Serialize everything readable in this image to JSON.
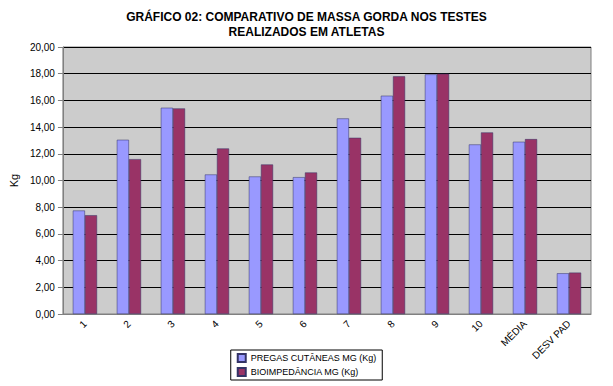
{
  "chart_data": {
    "type": "bar",
    "title": "GRÁFICO 02: COMPARATIVO DE MASSA GORDA NOS TESTES\nREALIZADOS EM ATLETAS",
    "y_label": "Kg",
    "categories": [
      "1",
      "2",
      "3",
      "4",
      "5",
      "6",
      "7",
      "8",
      "9",
      "10",
      "MÉDIA",
      "DESV PAD"
    ],
    "series": [
      {
        "name": "PREGAS CUTÂNEAS MG (Kg)",
        "color": "#9999ff",
        "values": [
          7.75,
          13.05,
          15.45,
          10.45,
          10.3,
          10.25,
          14.65,
          16.35,
          17.95,
          12.7,
          12.9,
          3.05
        ]
      },
      {
        "name": "BIOIMPEDÂNCIA MG (Kg)",
        "color": "#993366",
        "values": [
          7.4,
          11.6,
          15.4,
          12.4,
          11.2,
          10.6,
          13.2,
          17.8,
          18.0,
          13.6,
          13.1,
          3.1
        ]
      }
    ],
    "ylim": [
      0,
      20
    ],
    "yticks": [
      {
        "value": 0,
        "label": "0,00"
      },
      {
        "value": 2,
        "label": "2,00"
      },
      {
        "value": 4,
        "label": "4,00"
      },
      {
        "value": 6,
        "label": "6,00"
      },
      {
        "value": 8,
        "label": "8,00"
      },
      {
        "value": 10,
        "label": "10,00"
      },
      {
        "value": 12,
        "label": "12,00"
      },
      {
        "value": 14,
        "label": "14,00"
      },
      {
        "value": 16,
        "label": "16,00"
      },
      {
        "value": 18,
        "label": "18,00"
      },
      {
        "value": 20,
        "label": "20,00"
      }
    ],
    "grid": true,
    "legend": "bottom"
  }
}
